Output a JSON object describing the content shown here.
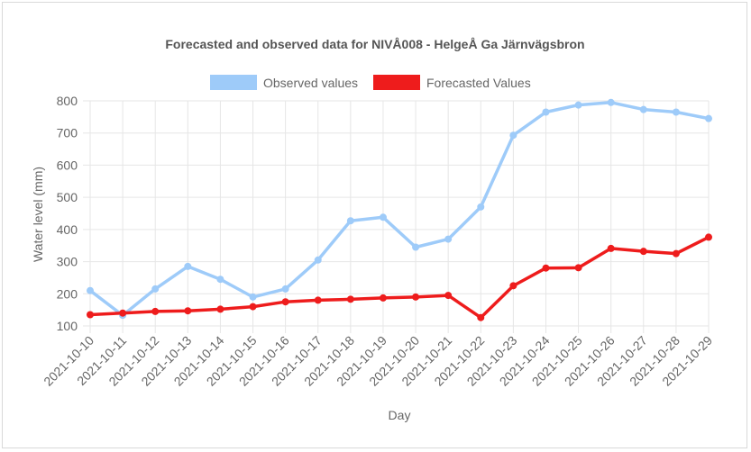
{
  "chart_data": {
    "type": "line",
    "title": "Forecasted and observed data for NIVÅ008 - HelgeÅ Ga Järnvägsbron",
    "xlabel": "Day",
    "ylabel": "Water level (mm)",
    "ylim": [
      100,
      800
    ],
    "yticks": [
      100,
      200,
      300,
      400,
      500,
      600,
      700,
      800
    ],
    "grid": true,
    "legend_position": "top",
    "categories": [
      "2021-10-10",
      "2021-10-11",
      "2021-10-12",
      "2021-10-13",
      "2021-10-14",
      "2021-10-15",
      "2021-10-16",
      "2021-10-17",
      "2021-10-18",
      "2021-10-19",
      "2021-10-20",
      "2021-10-21",
      "2021-10-22",
      "2021-10-23",
      "2021-10-24",
      "2021-10-25",
      "2021-10-26",
      "2021-10-27",
      "2021-10-28",
      "2021-10-29"
    ],
    "series": [
      {
        "name": "Observed values",
        "color": "#9ecbf9",
        "values": [
          210,
          133,
          215,
          285,
          245,
          190,
          215,
          305,
          427,
          438,
          345,
          370,
          470,
          693,
          765,
          787,
          795,
          773,
          765,
          745
        ]
      },
      {
        "name": "Forecasted Values",
        "color": "#ee1c1c",
        "values": [
          135,
          140,
          145,
          147,
          152,
          160,
          175,
          180,
          183,
          187,
          190,
          195,
          126,
          225,
          280,
          281,
          341,
          332,
          325,
          376
        ]
      }
    ]
  }
}
